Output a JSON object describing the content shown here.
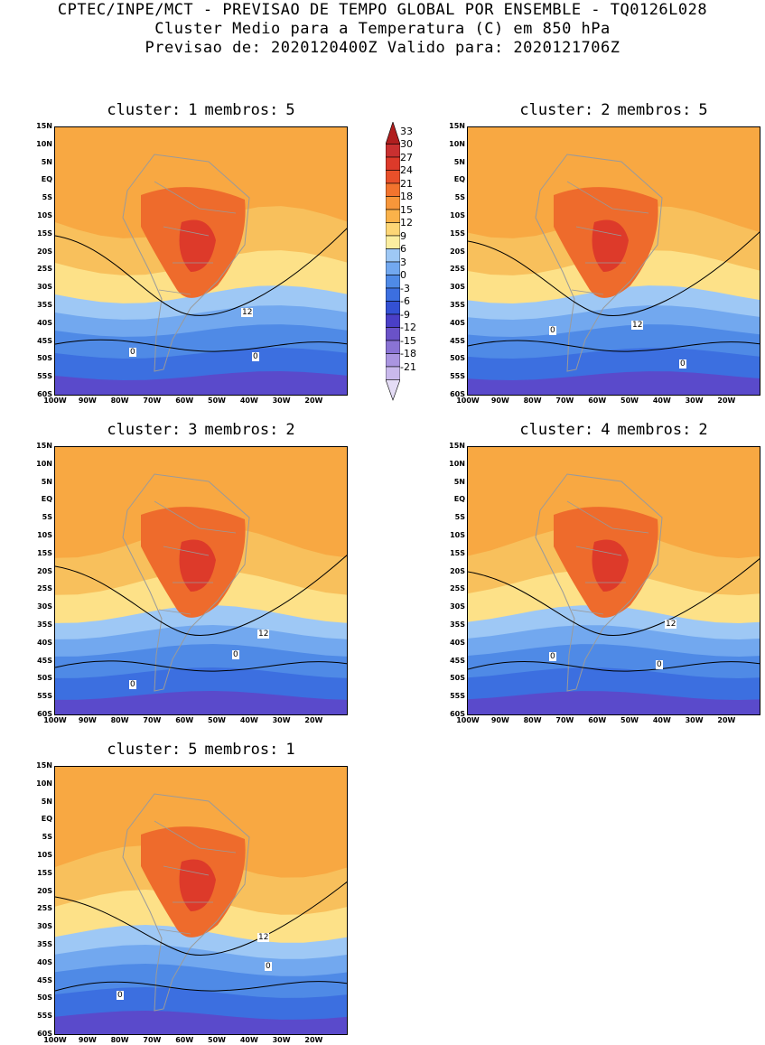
{
  "header": {
    "line1": "CPTEC/INPE/MCT - PREVISAO DE TEMPO GLOBAL POR ENSEMBLE - TQ0126L028",
    "line2": "Cluster Medio para a Temperatura (C) em 850 hPa",
    "line3": "Previsao de: 2020120400Z   Valido para: 2020121706Z"
  },
  "axes": {
    "lat_ticks": [
      "15N",
      "10N",
      "5N",
      "EQ",
      "5S",
      "10S",
      "15S",
      "20S",
      "25S",
      "30S",
      "35S",
      "40S",
      "45S",
      "50S",
      "55S",
      "60S"
    ],
    "lon_ticks": [
      "100W",
      "90W",
      "80W",
      "70W",
      "60W",
      "50W",
      "40W",
      "30W",
      "20W"
    ]
  },
  "colorbar": {
    "levels": [
      "33",
      "30",
      "27",
      "24",
      "21",
      "18",
      "15",
      "12",
      "9",
      "6",
      "3",
      "0",
      "-3",
      "-6",
      "-9",
      "-12",
      "-15",
      "-18",
      "-21"
    ],
    "colors": [
      "#b01e1e",
      "#c93030",
      "#dd3a2a",
      "#e8502a",
      "#f2742e",
      "#f7963a",
      "#fab24a",
      "#fdd676",
      "#fbeea0",
      "#9ec8f5",
      "#72a8ef",
      "#4f8ae6",
      "#3c6fe0",
      "#3451d4",
      "#4a3fc7",
      "#6a52c8",
      "#8a73d4",
      "#aa95e0",
      "#c9b9ec",
      "#e4dcf5"
    ]
  },
  "clusters": [
    {
      "label_cluster": "cluster:",
      "number": "1",
      "label_members": "membros:",
      "members": "5",
      "contour_12": "12",
      "contour_0a": "0",
      "contour_0b": "0"
    },
    {
      "label_cluster": "cluster:",
      "number": "2",
      "label_members": "membros:",
      "members": "5",
      "contour_12": "12",
      "contour_0a": "0",
      "contour_0b": "0"
    },
    {
      "label_cluster": "cluster:",
      "number": "3",
      "label_members": "membros:",
      "members": "2",
      "contour_12": "12",
      "contour_0a": "0",
      "contour_0b": "0"
    },
    {
      "label_cluster": "cluster:",
      "number": "4",
      "label_members": "membros:",
      "members": "2",
      "contour_12": "12",
      "contour_0a": "0",
      "contour_0b": "0"
    },
    {
      "label_cluster": "cluster:",
      "number": "5",
      "label_members": "membros:",
      "members": "1",
      "contour_12": "12",
      "contour_0a": "0",
      "contour_0b": "0"
    }
  ]
}
